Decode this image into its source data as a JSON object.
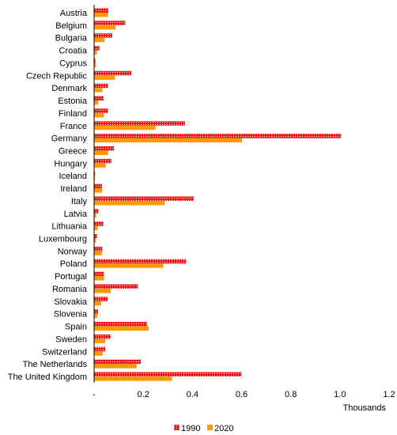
{
  "chart_data": {
    "type": "bar",
    "orientation": "horizontal",
    "categories": [
      "Austria",
      "Belgium",
      "Bulgaria",
      "Croatia",
      "Cyprus",
      "Czech Republic",
      "Denmark",
      "Estonia",
      "Finland",
      "France",
      "Germany",
      "Greece",
      "Hungary",
      "Iceland",
      "Ireland",
      "Italy",
      "Latvia",
      "Lithuania",
      "Luxembourg",
      "Norway",
      "Poland",
      "Portugal",
      "Romania",
      "Slovakia",
      "Slovenia",
      "Spain",
      "Sweden",
      "Switzerland",
      "The Netherlands",
      "The United Kingdom"
    ],
    "series": [
      {
        "name": "1990",
        "color": "#ee1c1c",
        "pattern": "dotted",
        "values": [
          0.058,
          0.127,
          0.074,
          0.022,
          0.005,
          0.152,
          0.057,
          0.039,
          0.057,
          0.37,
          1.005,
          0.081,
          0.07,
          0.004,
          0.032,
          0.406,
          0.018,
          0.038,
          0.012,
          0.034,
          0.375,
          0.04,
          0.178,
          0.056,
          0.016,
          0.215,
          0.068,
          0.046,
          0.19,
          0.6
        ]
      },
      {
        "name": "2020",
        "color": "#ff9900",
        "pattern": "solid",
        "values": [
          0.057,
          0.088,
          0.043,
          0.012,
          0.008,
          0.085,
          0.034,
          0.017,
          0.04,
          0.25,
          0.602,
          0.057,
          0.047,
          0.004,
          0.033,
          0.288,
          0.008,
          0.015,
          0.007,
          0.032,
          0.282,
          0.041,
          0.068,
          0.029,
          0.014,
          0.222,
          0.045,
          0.035,
          0.173,
          0.317
        ]
      }
    ],
    "x_ticks": [
      "-",
      "0.2",
      "0.4",
      "0.6",
      "0.8",
      "1.0",
      "1.2"
    ],
    "x_tick_values": [
      0,
      0.2,
      0.4,
      0.6,
      0.8,
      1.0,
      1.2
    ],
    "xlim": [
      0,
      1.2
    ],
    "xlabel": "Thousands",
    "ylabel": "",
    "title": "",
    "grid": false,
    "legend_position": "bottom"
  }
}
